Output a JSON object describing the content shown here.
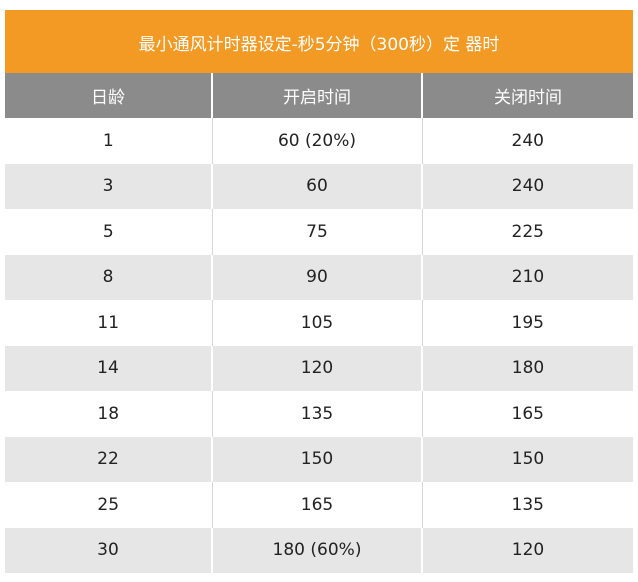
{
  "table": {
    "title": "最小通风计时器设定-秒5分钟（300秒）定 器时",
    "headers": [
      "日龄",
      "开启时间",
      "关闭时间"
    ],
    "rows": [
      [
        "1",
        "60 (20%)",
        "240"
      ],
      [
        "3",
        "60",
        "240"
      ],
      [
        "5",
        "75",
        "225"
      ],
      [
        "8",
        "90",
        "210"
      ],
      [
        "11",
        "105",
        "195"
      ],
      [
        "14",
        "120",
        "180"
      ],
      [
        "18",
        "135",
        "165"
      ],
      [
        "22",
        "150",
        "150"
      ],
      [
        "25",
        "165",
        "135"
      ],
      [
        "30",
        "180 (60%)",
        "120"
      ]
    ]
  },
  "colors": {
    "title_bg": "#f39a25",
    "header_bg": "#8b8b8b",
    "stripe_bg": "#e6e6e6"
  }
}
